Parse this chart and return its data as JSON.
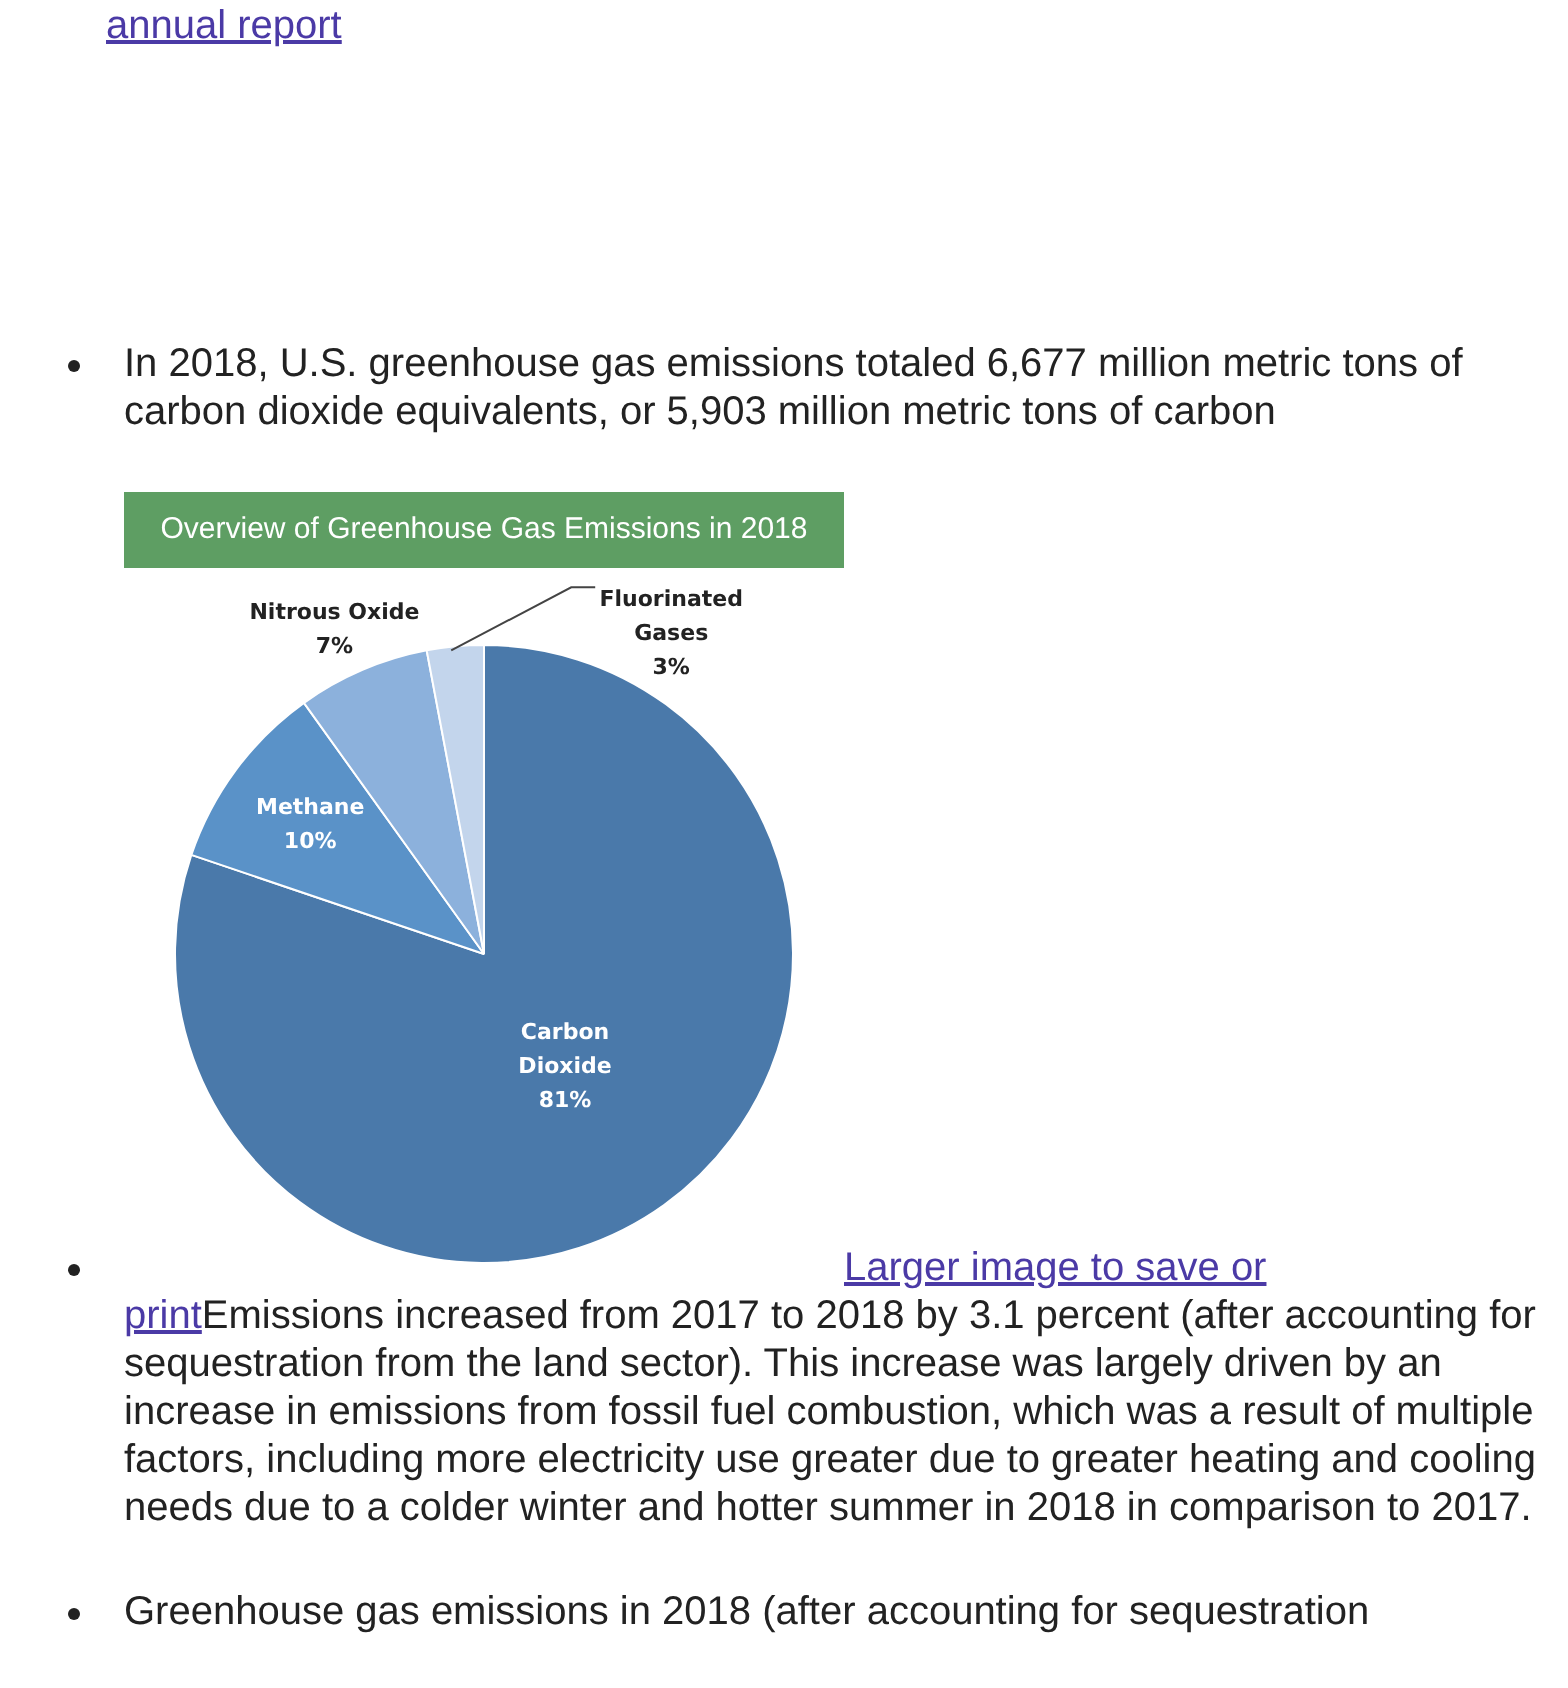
{
  "chart_data": {
    "type": "pie",
    "title": "Overview of Greenhouse Gas Emissions in 2018",
    "categories": [
      "Carbon Dioxide",
      "Methane",
      "Nitrous Oxide",
      "Fluorinated Gases"
    ],
    "values": [
      81,
      10,
      7,
      3
    ],
    "colors": [
      "#4a79aa",
      "#5a92c8",
      "#8cb1dc",
      "#c3d5ec"
    ],
    "value_labels": [
      "81%",
      "10%",
      "7%",
      "3%"
    ],
    "legend": false,
    "annotations": [
      "annual report",
      "In 2018, U.S. greenhouse gas emissions totaled 6,677 million metric tons of carbon dioxide equivalents, or 5,903 million metric tons of carbon",
      "Larger image to save or print",
      "Emissions increased from 2017 to 2018 by 3.1 percent (after accounting for sequestration from the land sector). This increase was largely driven by an increase in emissions from fossil fuel combustion, which was a result of multiple factors, including more electricity use greater due to greater heating and cooling needs due to a colder winter and hotter summer in 2018 in comparison to 2017.",
      "Greenhouse gas emissions in 2018 (after accounting for sequestration"
    ]
  }
}
